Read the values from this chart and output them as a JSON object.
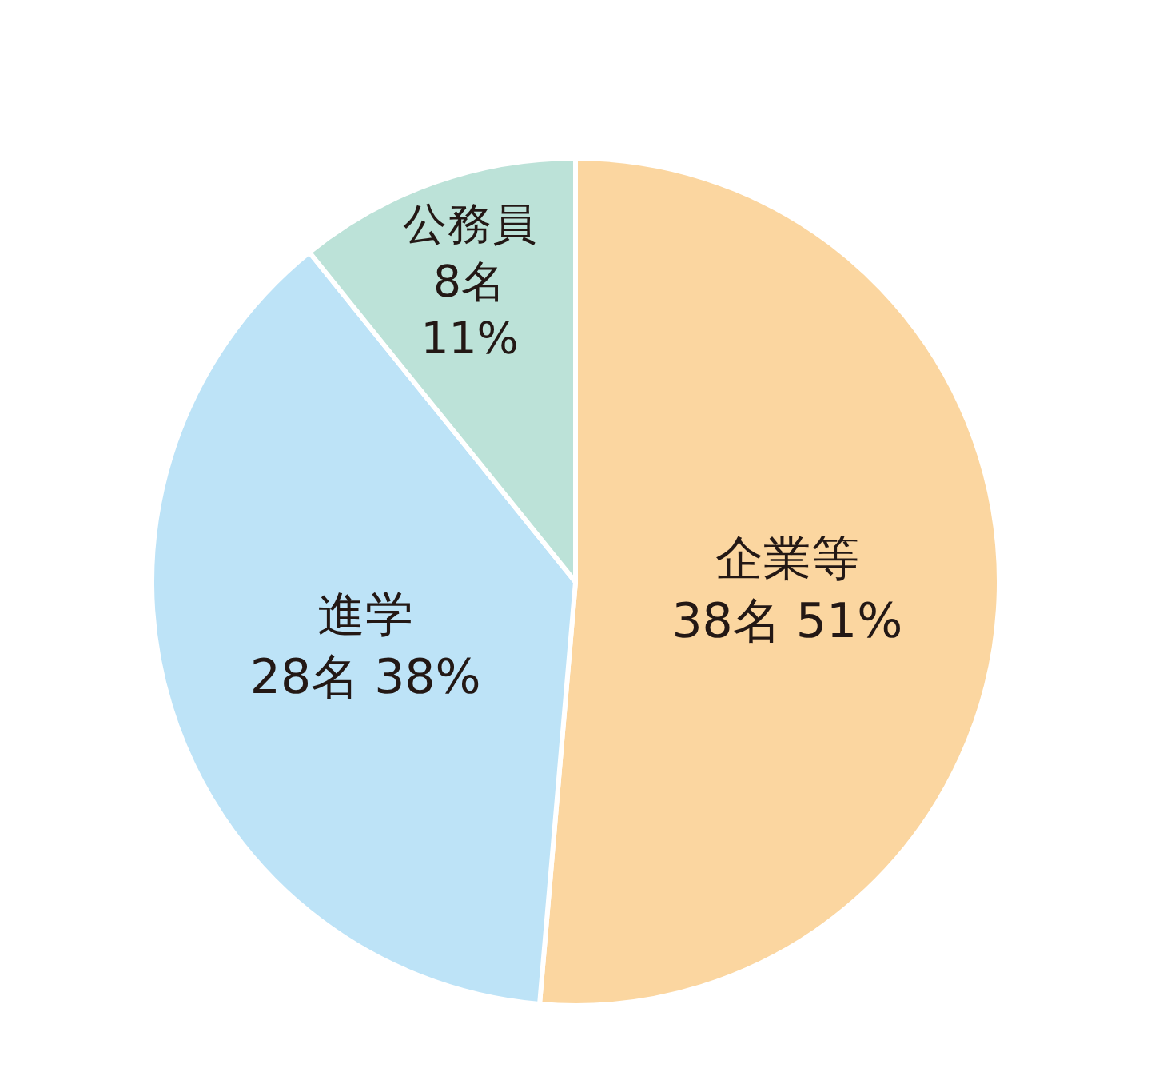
{
  "chart_data": {
    "type": "pie",
    "categories": [
      "企業等",
      "進学",
      "公務員"
    ],
    "values": [
      38,
      28,
      8
    ],
    "value_labels": [
      "38名 51%",
      "28名 38%",
      "8名 11%"
    ],
    "colors": [
      "#fbd6a0",
      "#bde3f7",
      "#bce2d8"
    ]
  }
}
